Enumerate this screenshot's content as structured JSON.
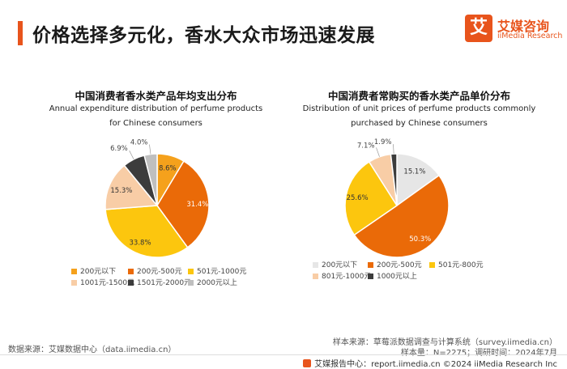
{
  "header": {
    "title": "价格选择多元化，香水大众市场迅速发展",
    "logo_mark": "艾",
    "logo_cn": "艾媒咨询",
    "logo_en": "iiMedia Research"
  },
  "charts": {
    "left": {
      "title_cn": "中国消费者香水类产品年均支出分布",
      "subtitle_line1": "Annual expenditure distribution of perfume products",
      "subtitle_line2": "for Chinese consumers"
    },
    "right": {
      "title_cn": "中国消费者常购买的香水类产品单价分布",
      "subtitle_line1": "Distribution of unit prices of perfume products commonly",
      "subtitle_line2": "purchased by Chinese consumers"
    }
  },
  "chart_data": [
    {
      "type": "pie",
      "title": "中国消费者香水类产品年均支出分布",
      "categories": [
        "200元以下",
        "200元-500元",
        "501元-1000元",
        "1001元-1500元",
        "1501元-2000元",
        "2000元以上"
      ],
      "values": [
        8.6,
        31.4,
        33.8,
        15.3,
        6.9,
        4.0
      ],
      "labels": [
        "8.6%",
        "31.4%",
        "33.8%",
        "15.3%",
        "6.9%",
        "4.0%"
      ],
      "colors": [
        "#f5a11c",
        "#ea6a08",
        "#fcc60e",
        "#f8cda6",
        "#3c3c3c",
        "#bfbfbf"
      ],
      "legend": "bottom"
    },
    {
      "type": "pie",
      "title": "中国消费者常购买的香水类产品单价分布",
      "categories": [
        "200元以下",
        "200元-500元",
        "501元-800元",
        "801元-1000元",
        "1000元以上"
      ],
      "values": [
        15.1,
        50.3,
        25.6,
        7.1,
        1.9
      ],
      "labels": [
        "15.1%",
        "50.3%",
        "25.6%",
        "7.1%",
        "1.9%"
      ],
      "colors": [
        "#e6e6e6",
        "#ea6a08",
        "#fcc60e",
        "#f8cda6",
        "#3c3c3c"
      ],
      "legend": "bottom"
    }
  ],
  "footer": {
    "source_left": "数据来源：艾媒数据中心（data.iimedia.cn）",
    "source_right_1": "样本来源：草莓派数据调查与计算系统（survey.iimedia.cn）",
    "source_right_2": "样本量：N=2275；调研时间：2024年7月",
    "brand_line": "艾媒报告中心：report.iimedia.cn   ©2024  iiMedia Research  Inc"
  }
}
